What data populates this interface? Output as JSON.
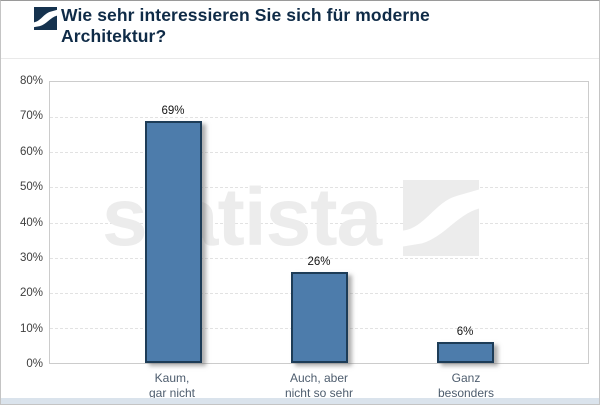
{
  "header": {
    "title": "Wie sehr interessieren Sie sich für moderne Architektur?",
    "logo_icon": "statista-swoosh-icon"
  },
  "watermark": {
    "text": "statista",
    "logo_icon": "statista-swoosh-icon"
  },
  "colors": {
    "bar_fill": "#4d7cab",
    "bar_border": "#1d3c57",
    "title_text": "#0f2b47",
    "category_text": "#4e5d6e",
    "tick_text": "#3e3e3e",
    "watermark": "#ececec",
    "footer_strip": "#dae3ec"
  },
  "chart_data": {
    "type": "bar",
    "title": "Wie sehr interessieren Sie sich für moderne Architektur?",
    "categories": [
      [
        "Kaum,",
        "gar nicht"
      ],
      [
        "Auch, aber",
        "nicht so sehr"
      ],
      [
        "Ganz",
        "besonders"
      ]
    ],
    "values": [
      69,
      26,
      6
    ],
    "value_labels": [
      "69%",
      "26%",
      "6%"
    ],
    "xlabel": "",
    "ylabel": "",
    "ylim": [
      0,
      80
    ],
    "ytick_step": 10,
    "yticks": [
      "80%",
      "70%",
      "60%",
      "50%",
      "40%",
      "30%",
      "20%",
      "10%",
      "0%"
    ],
    "grid": "horizontal-dashed",
    "legend": "none",
    "watermark": "statista"
  }
}
